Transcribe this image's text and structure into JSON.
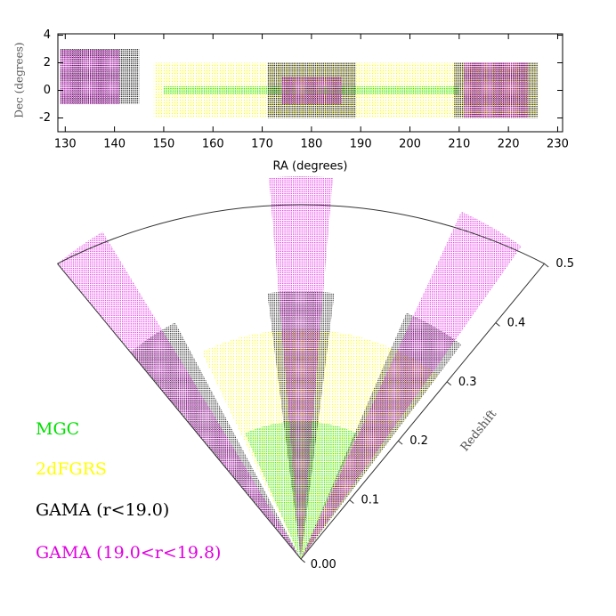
{
  "chart_data": [
    {
      "type": "footprint",
      "xlabel": "RA (degrees)",
      "ylabel": "Dec (degrees)",
      "xlim": [
        128.5,
        231
      ],
      "xticks": [
        130,
        140,
        150,
        160,
        170,
        180,
        190,
        200,
        210,
        220,
        230
      ],
      "ylim": [
        -3,
        4.1
      ],
      "yticks": [
        -2,
        0,
        2,
        4
      ],
      "series": [
        {
          "name": "2dFGRS",
          "color": "#ffff00",
          "zmax": 0.3,
          "regions": [
            {
              "ra": [
                148,
                226
              ],
              "dec": [
                -2,
                2
              ]
            }
          ]
        },
        {
          "name": "MGC",
          "color": "#00e000",
          "zmax": 0.18,
          "regions": [
            {
              "ra": [
                150,
                210
              ],
              "dec": [
                -0.3,
                0.3
              ]
            }
          ]
        },
        {
          "name": "GAMA (r<19.0)",
          "color": "#000000",
          "zmax": 0.35,
          "regions": [
            {
              "ra": [
                129,
                145
              ],
              "dec": [
                -1,
                3
              ]
            },
            {
              "ra": [
                171,
                189
              ],
              "dec": [
                -2,
                2
              ]
            },
            {
              "ra": [
                209,
                226
              ],
              "dec": [
                -2,
                2
              ]
            }
          ]
        },
        {
          "name": "GAMA (19.0<r<19.8)",
          "color": "#e000e0",
          "zmax": 0.5,
          "regions": [
            {
              "ra": [
                129,
                141
              ],
              "dec": [
                -1,
                3
              ]
            },
            {
              "ra": [
                174,
                186
              ],
              "dec": [
                -1,
                1
              ]
            },
            {
              "ra": [
                211,
                224
              ],
              "dec": [
                -2,
                2
              ]
            }
          ]
        }
      ]
    },
    {
      "type": "cone",
      "rlabel": "Redshift",
      "rlim": [
        0,
        0.5
      ],
      "rticks": [
        {
          "value": 0,
          "label": "0.00"
        },
        0.1,
        0.2,
        0.3,
        0.4,
        0.5
      ]
    }
  ]
}
